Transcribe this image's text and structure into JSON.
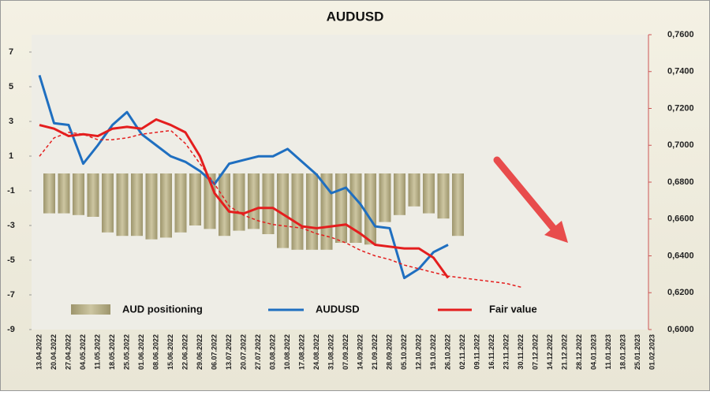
{
  "chart_data": {
    "type": "bar-line",
    "title": "AUDUSD",
    "categories": [
      "13.04.2022",
      "20.04.2022",
      "27.04.2022",
      "04.05.2022",
      "11.05.2022",
      "18.05.2022",
      "25.05.2022",
      "01.06.2022",
      "08.06.2022",
      "15.06.2022",
      "22.06.2022",
      "29.06.2022",
      "06.07.2022",
      "13.07.2022",
      "20.07.2022",
      "27.07.2022",
      "03.08.2022",
      "10.08.2022",
      "17.08.2022",
      "24.08.2022",
      "31.08.2022",
      "07.09.2022",
      "14.09.2022",
      "21.09.2022",
      "28.09.2022",
      "05.10.2022",
      "12.10.2022",
      "19.10.2022",
      "26.10.2022",
      "02.11.2022",
      "09.11.2022",
      "16.11.2022",
      "23.11.2022",
      "30.11.2022",
      "07.12.2022",
      "14.12.2022",
      "21.12.2022",
      "28.12.2022",
      "04.01.2023",
      "11.01.2023",
      "18.01.2023",
      "25.01.2023",
      "01.02.2023"
    ],
    "series": [
      {
        "name": "AUD positioning",
        "kind": "bar",
        "color": "#b3ab84",
        "values": [
          -2.3,
          -2.3,
          -2.4,
          -2.5,
          -3.4,
          -3.6,
          -3.6,
          -3.8,
          -3.7,
          -3.4,
          -3.0,
          -3.2,
          -3.6,
          -3.3,
          -3.2,
          -3.5,
          -4.3,
          -4.4,
          -4.4,
          -4.4,
          -4.0,
          -4.0,
          -4.1,
          -2.8,
          -2.4,
          -1.9,
          -2.3,
          -2.6,
          -3.6,
          null,
          null,
          null,
          null,
          null,
          null,
          null,
          null,
          null,
          null,
          null,
          null,
          null,
          null
        ]
      },
      {
        "name": "AUDUSD",
        "kind": "line",
        "axis": "y2",
        "color": "#1f6fc0",
        "values": [
          0.738,
          0.712,
          0.711,
          0.69,
          0.7,
          0.711,
          0.718,
          0.706,
          0.7,
          0.694,
          0.691,
          0.686,
          0.679,
          0.69,
          0.692,
          0.694,
          0.694,
          0.698,
          0.691,
          0.684,
          0.674,
          0.677,
          0.668,
          0.656,
          0.655,
          0.628,
          0.633,
          0.642,
          0.646,
          null,
          null,
          null,
          null,
          null,
          null,
          null,
          null,
          null,
          null,
          null,
          null,
          null,
          null
        ]
      },
      {
        "name": "Fair value",
        "kind": "line",
        "axis": "y2",
        "color": "#e41e1e",
        "values": [
          0.711,
          0.709,
          0.705,
          0.706,
          0.705,
          0.709,
          0.71,
          0.709,
          0.714,
          0.711,
          0.707,
          0.694,
          0.674,
          0.664,
          0.663,
          0.666,
          0.666,
          0.661,
          0.656,
          0.655,
          0.656,
          0.657,
          0.652,
          0.646,
          0.645,
          0.644,
          0.644,
          0.639,
          0.628,
          null,
          null,
          null,
          null,
          null,
          null,
          null,
          null,
          null,
          null,
          null,
          null,
          null,
          null
        ]
      },
      {
        "kind": "dashed",
        "axis": "y2",
        "color": "#e41e1e",
        "values": [
          0.694,
          0.704,
          0.707,
          0.706,
          0.703,
          0.703,
          0.704,
          0.706,
          0.707,
          0.708,
          0.701,
          0.69,
          0.679,
          0.667,
          0.662,
          0.659,
          0.657,
          0.656,
          0.655,
          0.652,
          0.65,
          0.647,
          0.643,
          0.64,
          0.638,
          0.635,
          0.633,
          0.631,
          0.629,
          0.628,
          0.627,
          0.626,
          0.625,
          0.623,
          null,
          null,
          null,
          null,
          null,
          null,
          null,
          null,
          null
        ]
      }
    ],
    "ylim": [
      -9,
      8
    ],
    "yticks": [
      7,
      5,
      3,
      1,
      -1,
      -3,
      -5,
      -7,
      -9
    ],
    "y2lim": [
      0.6,
      0.76
    ],
    "y2ticks": [
      {
        "value": 0.76,
        "label": "0,7600"
      },
      {
        "value": 0.74,
        "label": "0,7400"
      },
      {
        "value": 0.72,
        "label": "0,7200"
      },
      {
        "value": 0.7,
        "label": "0,7000"
      },
      {
        "value": 0.68,
        "label": "0,6800"
      },
      {
        "value": 0.66,
        "label": "0,6600"
      },
      {
        "value": 0.64,
        "label": "0,6400"
      },
      {
        "value": 0.62,
        "label": "0,6200"
      },
      {
        "value": 0.6,
        "label": "0,6000"
      }
    ]
  }
}
